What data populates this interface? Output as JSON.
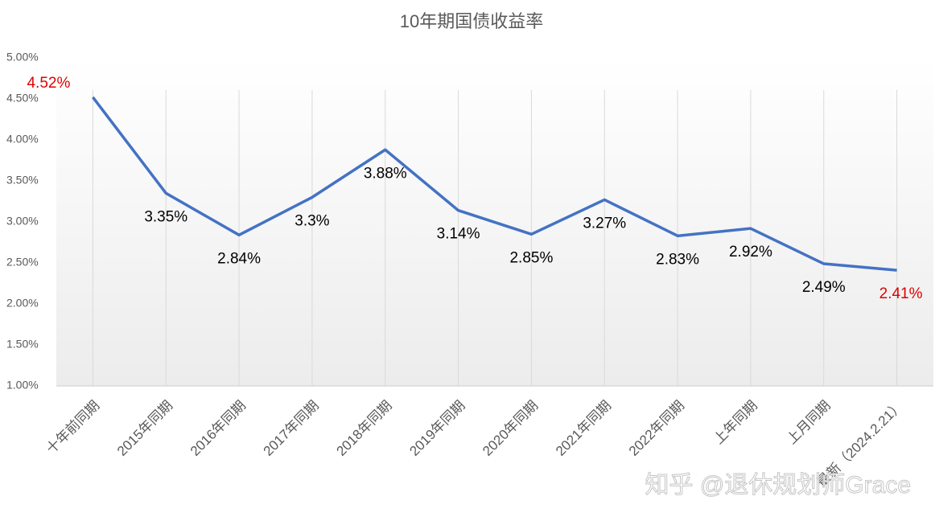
{
  "chart_data": {
    "type": "line",
    "title": "10年期国债收益率",
    "categories": [
      "十年前同期",
      "2015年同期",
      "2016年同期",
      "2017年同期",
      "2018年同期",
      "2019年同期",
      "2020年同期",
      "2021年同期",
      "2022年同期",
      "上年同期",
      "上月同期",
      "最新（2024.2.21）"
    ],
    "series": [
      {
        "color": "#4472c4",
        "values": [
          4.52,
          3.35,
          2.84,
          3.3,
          3.88,
          3.14,
          2.85,
          3.27,
          2.83,
          2.92,
          2.49,
          2.41
        ],
        "value_labels": [
          "4.52%",
          "3.35%",
          "2.84%",
          "3.3%",
          "3.88%",
          "3.14%",
          "2.85%",
          "3.27%",
          "2.83%",
          "2.92%",
          "2.49%",
          "2.41%"
        ],
        "label_colors": [
          "#e00000",
          "#000000",
          "#000000",
          "#000000",
          "#000000",
          "#000000",
          "#000000",
          "#000000",
          "#000000",
          "#000000",
          "#000000",
          "#e00000"
        ]
      }
    ],
    "ylim": [
      1,
      5
    ],
    "yticks": [
      {
        "value": 1,
        "label": "1.00%"
      },
      {
        "value": 1.5,
        "label": "1.50%"
      },
      {
        "value": 2,
        "label": "2.00%"
      },
      {
        "value": 2.5,
        "label": "2.50%"
      },
      {
        "value": 3,
        "label": "3.00%"
      },
      {
        "value": 3.5,
        "label": "3.50%"
      },
      {
        "value": 4,
        "label": "4.00%"
      },
      {
        "value": 4.5,
        "label": "4.50%"
      },
      {
        "value": 5,
        "label": "5.00%"
      }
    ],
    "watermark": "知乎 @退休规划师Grace"
  }
}
